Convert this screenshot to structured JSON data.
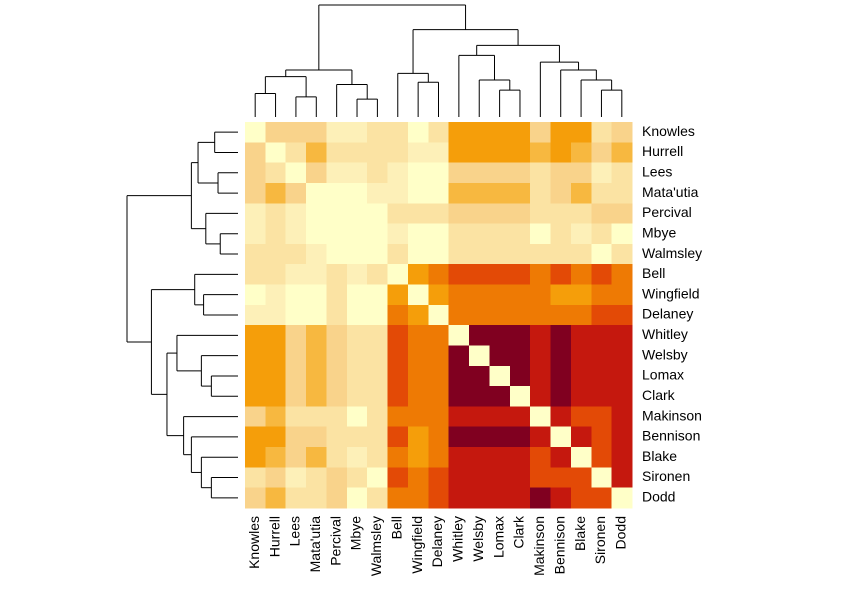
{
  "chart_data": {
    "type": "heatmap",
    "labels": [
      "Knowles",
      "Hurrell",
      "Lees",
      "Mata'utia",
      "Percival",
      "Mbye",
      "Walmsley",
      "Bell",
      "Wingfield",
      "Delaney",
      "Whitley",
      "Welsby",
      "Lomax",
      "Clark",
      "Makinson",
      "Bennison",
      "Blake",
      "Sironen",
      "Dodd"
    ],
    "colors": [
      "#ffffc8",
      "#fdf0b8",
      "#fbe3a3",
      "#f9d38b",
      "#f7b840",
      "#f59e0a",
      "#ee7a04",
      "#e34a06",
      "#c5180e",
      "#800020"
    ],
    "matrix": [
      [
        0,
        3,
        3,
        3,
        1,
        1,
        2,
        2,
        0,
        2,
        5,
        5,
        5,
        5,
        3,
        5,
        5,
        2,
        3
      ],
      [
        3,
        0,
        2,
        4,
        2,
        2,
        2,
        2,
        1,
        1,
        5,
        5,
        5,
        5,
        4,
        5,
        4,
        3,
        4
      ],
      [
        3,
        2,
        0,
        3,
        1,
        1,
        2,
        1,
        0,
        0,
        3,
        3,
        3,
        3,
        2,
        3,
        3,
        1,
        2
      ],
      [
        3,
        4,
        3,
        0,
        0,
        0,
        1,
        1,
        0,
        0,
        4,
        4,
        4,
        4,
        2,
        3,
        4,
        2,
        2
      ],
      [
        1,
        2,
        1,
        0,
        0,
        0,
        0,
        2,
        2,
        2,
        3,
        3,
        3,
        3,
        2,
        2,
        2,
        3,
        3
      ],
      [
        1,
        2,
        1,
        0,
        0,
        0,
        0,
        1,
        0,
        0,
        2,
        2,
        2,
        2,
        0,
        2,
        1,
        2,
        0
      ],
      [
        2,
        2,
        2,
        1,
        0,
        0,
        0,
        2,
        0,
        0,
        2,
        2,
        2,
        2,
        2,
        2,
        2,
        0,
        2
      ],
      [
        2,
        2,
        1,
        1,
        2,
        1,
        2,
        0,
        5,
        6,
        7,
        7,
        7,
        7,
        6,
        7,
        6,
        7,
        6
      ],
      [
        0,
        1,
        0,
        0,
        2,
        0,
        0,
        5,
        0,
        5,
        6,
        6,
        6,
        6,
        6,
        5,
        5,
        6,
        6
      ],
      [
        1,
        1,
        0,
        0,
        2,
        0,
        0,
        6,
        5,
        0,
        6,
        6,
        6,
        6,
        6,
        6,
        6,
        7,
        7
      ],
      [
        5,
        5,
        3,
        4,
        3,
        2,
        2,
        7,
        6,
        6,
        0,
        9,
        9,
        9,
        8,
        9,
        8,
        8,
        8
      ],
      [
        5,
        5,
        3,
        4,
        3,
        2,
        2,
        7,
        6,
        6,
        9,
        0,
        9,
        9,
        8,
        9,
        8,
        8,
        8
      ],
      [
        5,
        5,
        3,
        4,
        3,
        2,
        2,
        7,
        6,
        6,
        9,
        9,
        0,
        9,
        8,
        9,
        8,
        8,
        8
      ],
      [
        5,
        5,
        3,
        4,
        3,
        2,
        2,
        7,
        6,
        6,
        9,
        9,
        9,
        0,
        8,
        9,
        8,
        8,
        8
      ],
      [
        3,
        4,
        2,
        2,
        2,
        0,
        2,
        6,
        6,
        6,
        8,
        8,
        8,
        8,
        0,
        8,
        7,
        7,
        8
      ],
      [
        5,
        5,
        3,
        3,
        2,
        2,
        2,
        7,
        5,
        6,
        9,
        9,
        9,
        9,
        8,
        0,
        8,
        7,
        8
      ],
      [
        5,
        4,
        3,
        4,
        2,
        1,
        2,
        6,
        5,
        6,
        8,
        8,
        8,
        8,
        7,
        8,
        0,
        7,
        8
      ],
      [
        2,
        3,
        1,
        2,
        3,
        2,
        0,
        7,
        6,
        7,
        8,
        8,
        8,
        8,
        7,
        7,
        7,
        0,
        8
      ],
      [
        3,
        4,
        2,
        2,
        3,
        0,
        2,
        6,
        6,
        7,
        8,
        8,
        8,
        8,
        9,
        8,
        7,
        7,
        0
      ]
    ],
    "tree": {
      "h": 1,
      "c": [
        {
          "h": 0.42,
          "c": [
            {
              "h": 0.36,
              "c": [
                {
                  "h": 0.21,
                  "c": [
                    0,
                    1
                  ]
                },
                {
                  "h": 0.18,
                  "c": [
                    2,
                    3
                  ]
                }
              ]
            },
            {
              "h": 0.29,
              "c": [
                4,
                {
                  "h": 0.16,
                  "c": [
                    5,
                    6
                  ]
                }
              ]
            }
          ]
        },
        {
          "h": 0.78,
          "c": [
            {
              "h": 0.39,
              "c": [
                7,
                {
                  "h": 0.31,
                  "c": [
                    8,
                    9
                  ]
                }
              ]
            },
            {
              "h": 0.64,
              "c": [
                {
                  "h": 0.55,
                  "c": [
                    10,
                    {
                      "h": 0.33,
                      "c": [
                        11,
                        {
                          "h": 0.24,
                          "c": [
                            12,
                            13
                          ]
                        }
                      ]
                    }
                  ]
                },
                {
                  "h": 0.49,
                  "c": [
                    14,
                    {
                      "h": 0.42,
                      "c": [
                        15,
                        {
                          "h": 0.33,
                          "c": [
                            16,
                            {
                              "h": 0.24,
                              "c": [
                                17,
                                18
                              ]
                            }
                          ]
                        }
                      ]
                    }
                  ]
                }
              ]
            }
          ]
        }
      ]
    }
  }
}
